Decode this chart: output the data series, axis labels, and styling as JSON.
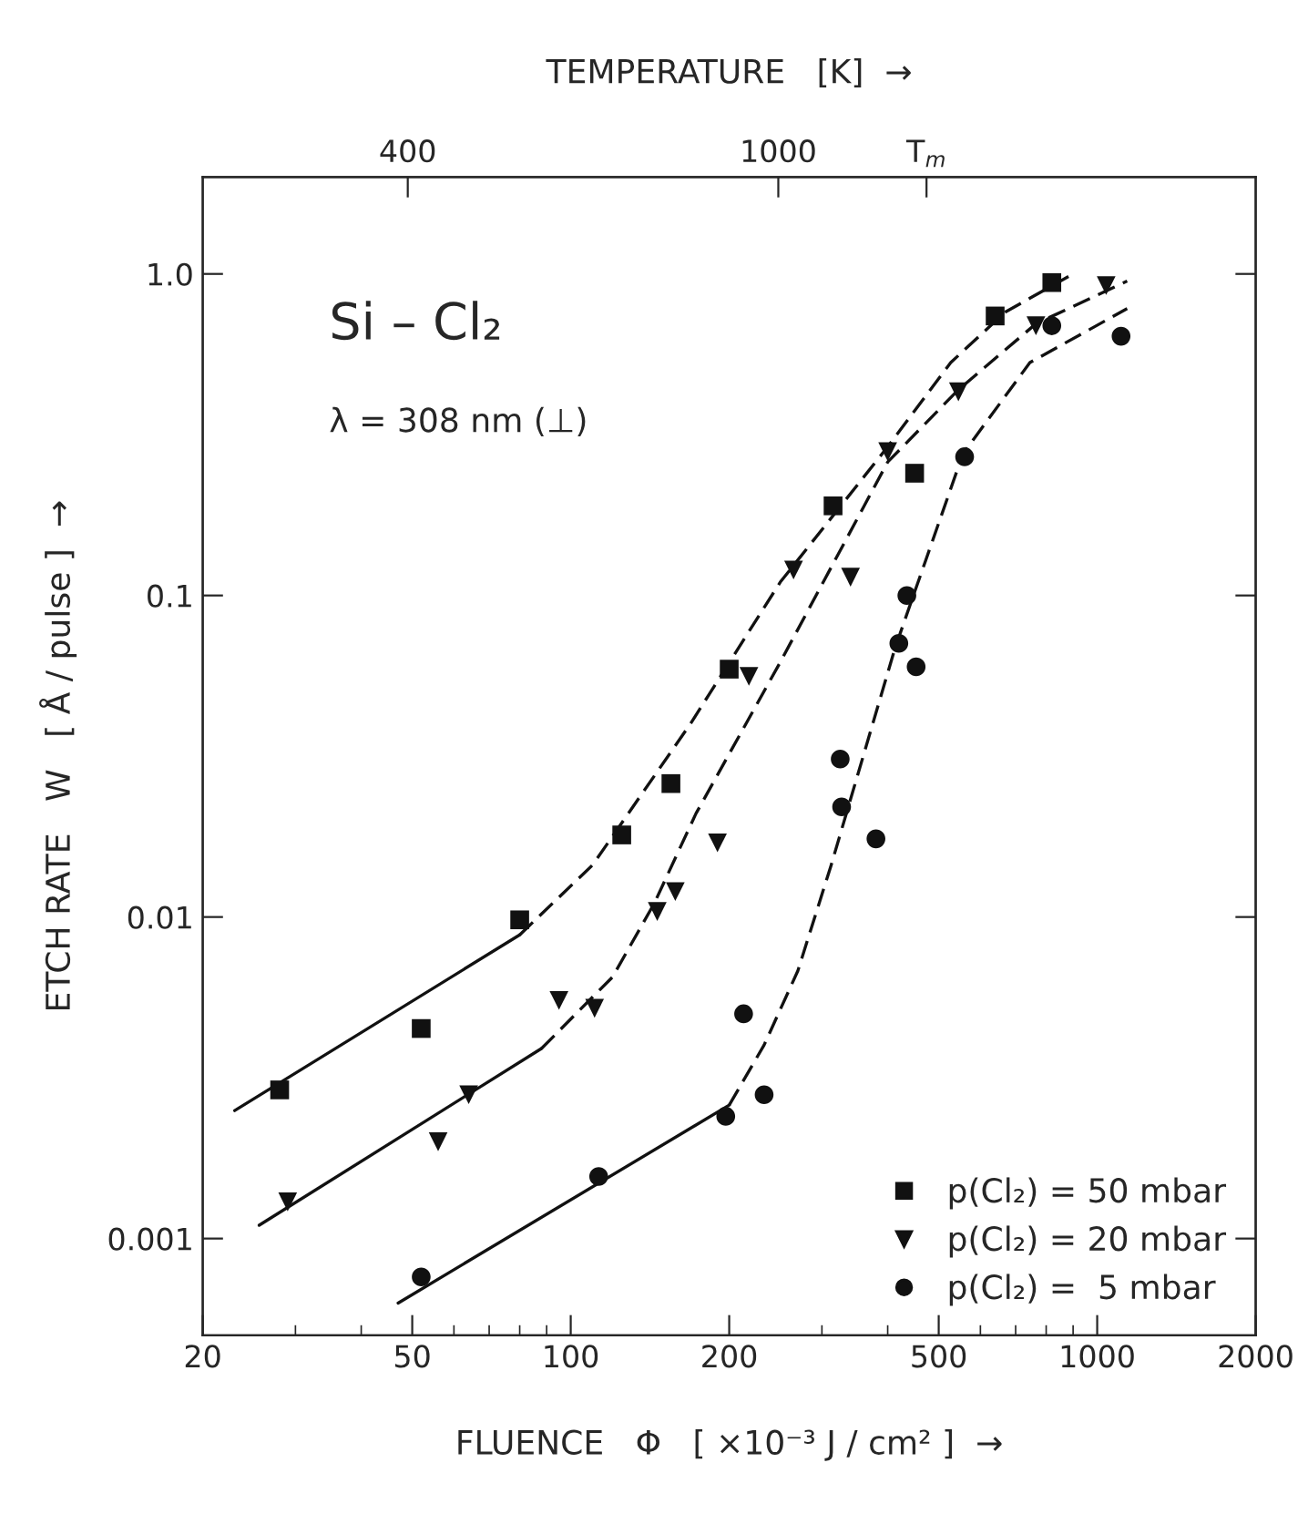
{
  "chart_data": {
    "type": "scatter",
    "xlabel": "FLUENCE   Φ   [ ×10⁻³ J / cm² ]  →",
    "ylabel": "ETCH RATE   W   [ Å / pulse ]  →",
    "x2label": "TEMPERATURE   [K]  →",
    "annotations": [
      "Si – Cl₂",
      "λ = 308 nm (⊥)"
    ],
    "log": "xy",
    "xlim": [
      20,
      2000
    ],
    "xticks": [
      20,
      50,
      100,
      200,
      500,
      1000,
      2000
    ],
    "ylim": [
      0.0005,
      2
    ],
    "yticks": [
      {
        "value": 0.001,
        "label": "0.001"
      },
      {
        "value": 0.01,
        "label": "0.01"
      },
      {
        "value": 0.1,
        "label": "0.1"
      },
      {
        "value": 1,
        "label": "1.0"
      }
    ],
    "x2lim": [
      68,
      1773
    ],
    "x2ticks": [
      400,
      1000,
      {
        "value": 1240,
        "label": "T$_{m}$"
      }
    ],
    "grid": false,
    "legend": "bottom right",
    "series": [
      {
        "name": "p(Cl₂) = 50 mbar",
        "color": "#111111",
        "marker": "square",
        "x": [
          28,
          52,
          80,
          125,
          155,
          200,
          315,
          450,
          640,
          820
        ],
        "values": [
          0.0029,
          0.0045,
          0.0098,
          0.018,
          0.026,
          0.059,
          0.19,
          0.24,
          0.74,
          0.94
        ]
      },
      {
        "name": "p(Cl₂) = 20 mbar",
        "color": "#111111",
        "marker": "triangle",
        "x": [
          29,
          56,
          64,
          95,
          111,
          146,
          158,
          190,
          218,
          265,
          340,
          400,
          545,
          765,
          1040
        ],
        "values": [
          0.0013,
          0.002,
          0.0028,
          0.0055,
          0.0052,
          0.0104,
          0.012,
          0.017,
          0.056,
          0.12,
          0.114,
          0.28,
          0.43,
          0.69,
          0.92
        ]
      },
      {
        "name": "p(Cl₂) =  5 mbar",
        "color": "#111111",
        "marker": "circle",
        "x": [
          52,
          113,
          197,
          213,
          233,
          325,
          327,
          380,
          420,
          435,
          453,
          560,
          820,
          1110
        ],
        "values": [
          0.00076,
          0.00156,
          0.0024,
          0.005,
          0.0028,
          0.031,
          0.022,
          0.0175,
          0.071,
          0.1,
          0.06,
          0.27,
          0.69,
          0.64
        ]
      },
      {
        "type": "line",
        "color": "#111111",
        "line_style": "solid",
        "x": [
          23,
          80
        ],
        "values": [
          0.0025,
          0.0088
        ]
      },
      {
        "type": "line",
        "color": "#111111",
        "line_style": "dashed",
        "x": [
          80,
          110,
          169,
          250,
          400,
          527,
          668,
          900
        ],
        "values": [
          0.0088,
          0.0145,
          0.04,
          0.11,
          0.29,
          0.53,
          0.76,
          1.0
        ]
      },
      {
        "type": "line",
        "color": "#111111",
        "line_style": "solid",
        "x": [
          25.6,
          88
        ],
        "values": [
          0.0011,
          0.0039
        ]
      },
      {
        "type": "line",
        "color": "#111111",
        "line_style": "dashed",
        "x": [
          88,
          120,
          144,
          173,
          250,
          400,
          544,
          765,
          1140
        ],
        "values": [
          0.0039,
          0.0065,
          0.011,
          0.021,
          0.062,
          0.26,
          0.435,
          0.7,
          0.95
        ]
      },
      {
        "type": "line",
        "color": "#111111",
        "line_style": "solid",
        "x": [
          47,
          200
        ],
        "values": [
          0.00063,
          0.0026
        ]
      },
      {
        "type": "line",
        "color": "#111111",
        "line_style": "dashed",
        "x": [
          200,
          233,
          270,
          312,
          413,
          556,
          745,
          1140
        ],
        "values": [
          0.0026,
          0.004,
          0.0068,
          0.0144,
          0.0686,
          0.276,
          0.53,
          0.78
        ]
      }
    ]
  }
}
